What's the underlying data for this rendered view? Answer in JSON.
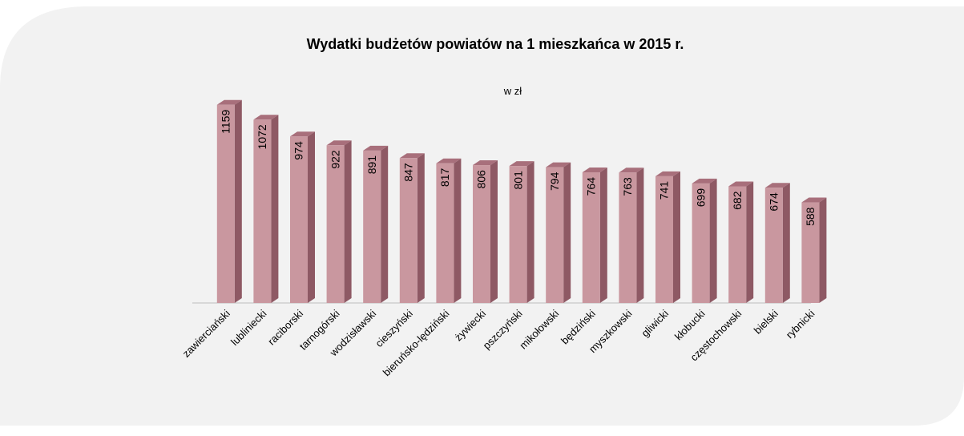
{
  "chart_data": {
    "type": "bar3d",
    "title": "Wydatki budżetów powiatów na 1 mieszkańca w 2015 r.",
    "subtitle": "w zł",
    "categories": [
      "zawierciański",
      "lubliniecki",
      "raciborski",
      "tarnogórski",
      "wodzisławski",
      "cieszyński",
      "bieruńsko-lędziński",
      "żywiecki",
      "pszczyński",
      "mikołowski",
      "będziński",
      "myszkowski",
      "gliwicki",
      "kłobucki",
      "częstochowski",
      "bielski",
      "rybnicki"
    ],
    "values": [
      1159,
      1072,
      974,
      922,
      891,
      847,
      817,
      806,
      801,
      794,
      764,
      763,
      741,
      699,
      682,
      674,
      588
    ],
    "color": "#c9979f",
    "ylim": [
      0,
      1200
    ]
  }
}
